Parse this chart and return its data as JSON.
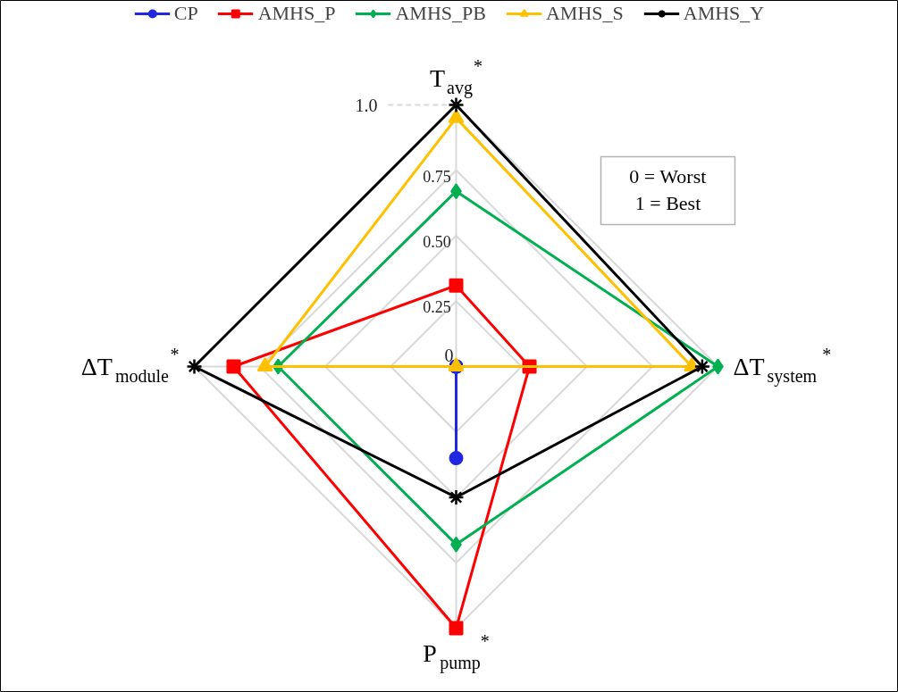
{
  "chart_data": {
    "type": "radar",
    "categories": [
      "T$_{avg}$$^{*}$",
      "ΔT$_{system}$$^{*}$",
      "P$_{pump}$$^{*}$",
      "ΔT$_{module}$$^{*}$"
    ],
    "series": [
      {
        "name": "CP",
        "color": "#1f27e0",
        "marker": "circle",
        "values": [
          0,
          0,
          0.35,
          0
        ]
      },
      {
        "name": "AMHS_P",
        "color": "#ff0000",
        "marker": "square",
        "values": [
          0.31,
          0.28,
          1.0,
          0.85
        ]
      },
      {
        "name": "AMHS_PB",
        "color": "#00b050",
        "marker": "diamond",
        "values": [
          0.67,
          1.0,
          0.68,
          0.68
        ]
      },
      {
        "name": "AMHS_S",
        "color": "#ffc000",
        "marker": "triangle",
        "values": [
          0.95,
          0.9,
          0,
          0.73
        ]
      },
      {
        "name": "AMHS_Y",
        "color": "#000000",
        "marker": "star",
        "values": [
          1.0,
          0.94,
          0.5,
          1.0
        ]
      }
    ],
    "ylim": [
      0,
      1.0
    ],
    "yticks": [
      0,
      {
        "value": 0.25,
        "label": "0.25"
      },
      {
        "value": 0.5,
        "label": "0.50"
      },
      {
        "value": 0.75,
        "label": "0.75"
      },
      {
        "value": 1.0,
        "label": "1.0"
      }
    ],
    "grid": true,
    "legend": "top",
    "annotations": [
      "0 = Worst",
      "1 = Best"
    ]
  }
}
